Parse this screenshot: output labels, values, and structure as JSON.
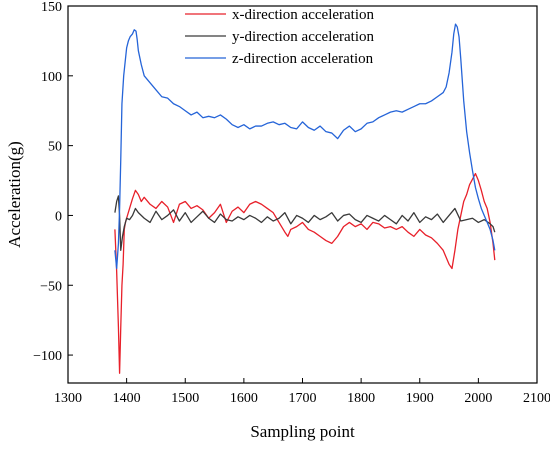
{
  "chart_data": {
    "type": "line",
    "xlabel": "Sampling point",
    "ylabel": "Acceleration(g)",
    "xlim": [
      1300,
      2100
    ],
    "ylim": [
      -120,
      150
    ],
    "x_ticks": [
      1300,
      1400,
      1500,
      1600,
      1700,
      1800,
      1900,
      2000,
      2100
    ],
    "y_ticks": [
      -100,
      -50,
      0,
      50,
      100,
      150
    ],
    "grid": false,
    "legend_position": "top-center",
    "series": [
      {
        "name": "x-direction acceleration",
        "color": "#e8202a",
        "x": [
          1380,
          1383,
          1386,
          1388,
          1390,
          1392,
          1394,
          1396,
          1398,
          1400,
          1405,
          1410,
          1415,
          1420,
          1425,
          1430,
          1440,
          1450,
          1460,
          1470,
          1480,
          1490,
          1500,
          1510,
          1520,
          1530,
          1540,
          1550,
          1560,
          1570,
          1580,
          1590,
          1600,
          1610,
          1620,
          1630,
          1640,
          1650,
          1660,
          1670,
          1675,
          1680,
          1690,
          1700,
          1710,
          1720,
          1730,
          1740,
          1750,
          1760,
          1770,
          1780,
          1790,
          1800,
          1810,
          1820,
          1830,
          1840,
          1850,
          1860,
          1870,
          1880,
          1890,
          1900,
          1910,
          1920,
          1930,
          1940,
          1950,
          1955,
          1960,
          1965,
          1970,
          1975,
          1980,
          1985,
          1990,
          1995,
          2000,
          2005,
          2010,
          2015,
          2020,
          2025,
          2028
        ],
        "y": [
          -10,
          -40,
          -80,
          -113,
          -80,
          -50,
          -35,
          -10,
          -5,
          -2,
          5,
          12,
          18,
          15,
          10,
          13,
          8,
          5,
          10,
          6,
          -5,
          8,
          10,
          5,
          7,
          4,
          -2,
          2,
          8,
          -5,
          3,
          6,
          2,
          8,
          10,
          8,
          5,
          2,
          -5,
          -12,
          -15,
          -10,
          -8,
          -5,
          -10,
          -12,
          -15,
          -18,
          -20,
          -15,
          -8,
          -5,
          -8,
          -6,
          -10,
          -5,
          -6,
          -9,
          -8,
          -10,
          -8,
          -12,
          -15,
          -10,
          -14,
          -16,
          -20,
          -25,
          -35,
          -38,
          -25,
          -10,
          0,
          10,
          15,
          22,
          26,
          30,
          25,
          18,
          10,
          5,
          -5,
          -20,
          -32
        ]
      },
      {
        "name": "y-direction acceleration",
        "color": "#3a3a3a",
        "x": [
          1380,
          1383,
          1386,
          1388,
          1390,
          1393,
          1396,
          1400,
          1405,
          1410,
          1415,
          1420,
          1430,
          1440,
          1450,
          1460,
          1470,
          1480,
          1490,
          1500,
          1510,
          1520,
          1530,
          1540,
          1550,
          1560,
          1570,
          1580,
          1590,
          1600,
          1610,
          1620,
          1630,
          1640,
          1650,
          1660,
          1670,
          1680,
          1690,
          1700,
          1710,
          1720,
          1730,
          1740,
          1750,
          1760,
          1770,
          1780,
          1790,
          1800,
          1810,
          1820,
          1830,
          1840,
          1850,
          1860,
          1870,
          1880,
          1890,
          1900,
          1910,
          1920,
          1930,
          1940,
          1950,
          1960,
          1970,
          1980,
          1990,
          2000,
          2010,
          2020,
          2025,
          2028
        ],
        "y": [
          2,
          10,
          14,
          0,
          -25,
          -15,
          -8,
          -2,
          -3,
          0,
          5,
          2,
          -2,
          -5,
          3,
          -3,
          0,
          4,
          -4,
          2,
          -5,
          -1,
          3,
          -2,
          -5,
          1,
          -3,
          -4,
          -1,
          -3,
          0,
          -2,
          -5,
          -1,
          -4,
          -2,
          2,
          -6,
          0,
          -2,
          -5,
          0,
          -3,
          -1,
          2,
          -4,
          0,
          1,
          -3,
          -5,
          0,
          -2,
          -4,
          0,
          -3,
          -6,
          0,
          -4,
          2,
          -5,
          -1,
          -3,
          1,
          -5,
          0,
          5,
          -4,
          -3,
          -2,
          -5,
          -3,
          -6,
          -8,
          -12
        ]
      },
      {
        "name": "z-direction acceleration",
        "color": "#2564d8",
        "x": [
          1380,
          1383,
          1386,
          1388,
          1390,
          1392,
          1395,
          1398,
          1400,
          1403,
          1406,
          1410,
          1413,
          1416,
          1418,
          1420,
          1425,
          1430,
          1440,
          1450,
          1460,
          1470,
          1480,
          1490,
          1500,
          1510,
          1520,
          1530,
          1540,
          1550,
          1560,
          1570,
          1580,
          1590,
          1600,
          1610,
          1620,
          1630,
          1640,
          1650,
          1660,
          1670,
          1680,
          1690,
          1700,
          1710,
          1720,
          1730,
          1740,
          1750,
          1760,
          1770,
          1780,
          1790,
          1800,
          1810,
          1820,
          1830,
          1840,
          1850,
          1860,
          1870,
          1880,
          1890,
          1900,
          1910,
          1920,
          1930,
          1940,
          1945,
          1950,
          1955,
          1958,
          1961,
          1964,
          1967,
          1970,
          1975,
          1980,
          1985,
          1990,
          1995,
          2000,
          2005,
          2010,
          2015,
          2020,
          2025,
          2028
        ],
        "y": [
          -25,
          -38,
          -20,
          5,
          40,
          80,
          100,
          112,
          120,
          125,
          128,
          130,
          133,
          132,
          126,
          118,
          108,
          100,
          95,
          90,
          85,
          84,
          80,
          78,
          75,
          72,
          74,
          70,
          71,
          70,
          72,
          69,
          65,
          63,
          65,
          62,
          64,
          64,
          66,
          67,
          65,
          66,
          63,
          62,
          67,
          63,
          61,
          64,
          60,
          59,
          55,
          61,
          64,
          60,
          62,
          66,
          67,
          70,
          72,
          74,
          75,
          74,
          76,
          78,
          80,
          80,
          82,
          85,
          88,
          92,
          102,
          117,
          130,
          137,
          135,
          128,
          112,
          82,
          60,
          45,
          32,
          20,
          12,
          5,
          0,
          -5,
          -10,
          -18,
          -25
        ]
      }
    ]
  }
}
